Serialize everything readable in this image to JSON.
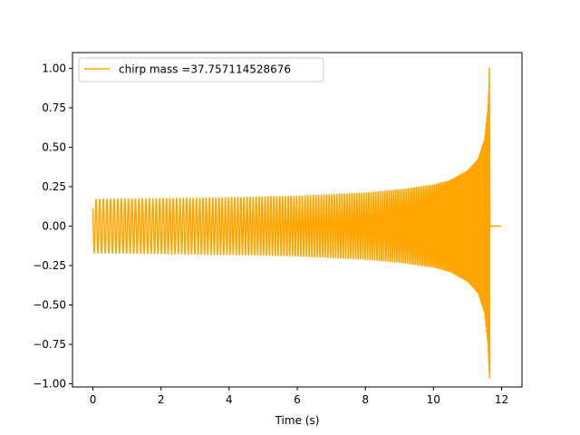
{
  "chart_data": {
    "type": "line",
    "title": "",
    "xlabel": "Time (s)",
    "ylabel": "",
    "xlim": [
      -0.6,
      12.6
    ],
    "ylim": [
      -1.02,
      1.1
    ],
    "x_ticks": [
      0,
      2,
      4,
      6,
      8,
      10,
      12
    ],
    "x_tick_labels": [
      "0",
      "2",
      "4",
      "6",
      "8",
      "10",
      "12"
    ],
    "y_ticks": [
      1.0,
      0.75,
      0.5,
      0.25,
      0.0,
      -0.25,
      -0.5,
      -0.75,
      -1.0
    ],
    "y_tick_labels": [
      "1.00",
      "0.75",
      "0.50",
      "0.25",
      "0.00",
      "−0.25",
      "−0.50",
      "−0.75",
      "−1.00"
    ],
    "grid": false,
    "legend_position": "top-left",
    "series": [
      {
        "name": "chirp mass =37.757114528676",
        "color": "#ffa500",
        "start_time": 0.0,
        "merger_time": 11.65,
        "end_time": 12.0,
        "initial_amplitude": 0.17,
        "peak_amplitude": 1.0,
        "min_amplitude": -0.93,
        "initial_cycles_per_second": 9.3,
        "envelope": [
          [
            0.0,
            0.17
          ],
          [
            2.0,
            0.175
          ],
          [
            4.0,
            0.18
          ],
          [
            6.0,
            0.19
          ],
          [
            8.0,
            0.21
          ],
          [
            9.0,
            0.23
          ],
          [
            10.0,
            0.26
          ],
          [
            10.5,
            0.29
          ],
          [
            11.0,
            0.35
          ],
          [
            11.3,
            0.42
          ],
          [
            11.5,
            0.55
          ],
          [
            11.6,
            0.75
          ],
          [
            11.65,
            1.0
          ]
        ],
        "post_merger_value": 0.0
      }
    ]
  }
}
